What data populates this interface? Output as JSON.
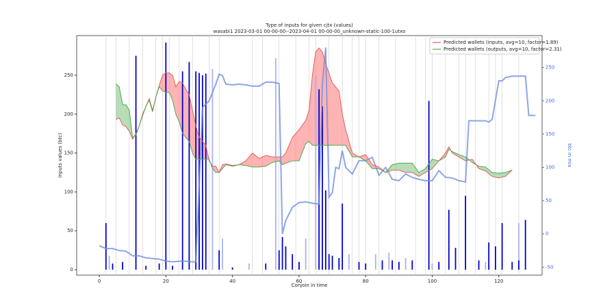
{
  "chart_data": {
    "type": "combo",
    "title": "Type of inputs for given cjtx (values)",
    "subtitle": "wasabi1 2023-03-01 00-00-00--2023-04-01 00-00-00_unknown-static-100-1utxo",
    "x_label": "Conjoin in time",
    "y_label": "Inputs values (btc)",
    "y2_label": "btc in mix",
    "xlim": [
      -6.8,
      133
    ],
    "xticks": [
      0,
      20,
      40,
      60,
      80,
      100,
      120
    ],
    "ylim": [
      -7,
      301
    ],
    "yticks": [
      0,
      50,
      100,
      150,
      200,
      250
    ],
    "y2lim": [
      -62,
      298
    ],
    "y2ticks": [
      -50,
      0,
      50,
      100,
      150,
      200,
      250
    ],
    "legend": "upper right",
    "event_x": [
      2,
      5,
      9,
      13,
      17,
      19,
      21,
      24,
      28,
      33,
      36,
      46,
      49,
      54,
      59,
      63,
      65,
      69,
      73,
      76,
      78,
      80,
      84,
      89,
      95,
      98,
      100,
      104,
      108,
      110,
      113,
      117,
      119,
      121,
      126
    ],
    "series": [
      {
        "name": "Predicted wallets (inputs, avg=10, factor=1.89)",
        "color": "#e06060",
        "fill": "#ff9a9a",
        "x": [
          5,
          6,
          7,
          8,
          9,
          10,
          11,
          12,
          13,
          14,
          15,
          16,
          17,
          18,
          19,
          20,
          21,
          22,
          23,
          24,
          25,
          26,
          27,
          28,
          29,
          30,
          32,
          33,
          34,
          35,
          36,
          37,
          38,
          40,
          42,
          44,
          46,
          48,
          50,
          52,
          54,
          55,
          56,
          58,
          60,
          62,
          63,
          64,
          65,
          66,
          67,
          68,
          70,
          72,
          73,
          74,
          76,
          78,
          80,
          82,
          84,
          86,
          88,
          90,
          92,
          94,
          96,
          98,
          100,
          102,
          104,
          105,
          106,
          108,
          110,
          112,
          114,
          116,
          118,
          120,
          122,
          124
        ],
        "values": [
          193,
          195,
          186,
          184,
          178,
          168,
          175,
          185,
          200,
          210,
          220,
          205,
          222,
          237,
          250,
          253,
          253,
          250,
          235,
          242,
          240,
          232,
          225,
          205,
          185,
          170,
          160,
          140,
          133,
          133,
          125,
          135,
          136,
          134,
          135,
          140,
          150,
          143,
          147,
          145,
          145,
          145,
          150,
          170,
          180,
          192,
          205,
          250,
          280,
          285,
          280,
          265,
          240,
          230,
          200,
          180,
          150,
          145,
          148,
          135,
          132,
          125,
          128,
          128,
          125,
          125,
          120,
          125,
          130,
          140,
          150,
          158,
          150,
          145,
          140,
          142,
          130,
          127,
          120,
          118,
          120,
          128
        ]
      },
      {
        "name": "Predicted wallets (outputs, avg=10, factor=2.31)",
        "color": "#4fa84f",
        "fill": "#9fd09f",
        "x": [
          5,
          6,
          7,
          8,
          9,
          10,
          11,
          12,
          13,
          14,
          15,
          16,
          17,
          18,
          19,
          20,
          21,
          22,
          23,
          24,
          25,
          26,
          27,
          28,
          29,
          30,
          32,
          33,
          34,
          35,
          36,
          37,
          38,
          40,
          42,
          44,
          46,
          48,
          50,
          52,
          54,
          55,
          56,
          58,
          60,
          62,
          63,
          64,
          65,
          66,
          67,
          68,
          70,
          72,
          73,
          74,
          76,
          78,
          80,
          82,
          84,
          86,
          88,
          90,
          92,
          94,
          96,
          98,
          100,
          102,
          104,
          105,
          106,
          108,
          110,
          112,
          114,
          116,
          118,
          120,
          122,
          124
        ],
        "values": [
          239,
          235,
          212,
          212,
          205,
          170,
          173,
          185,
          198,
          210,
          218,
          203,
          222,
          235,
          230,
          228,
          228,
          218,
          200,
          190,
          175,
          170,
          165,
          150,
          142,
          142,
          142,
          142,
          130,
          125,
          125,
          130,
          135,
          133,
          135,
          134,
          132,
          132,
          133,
          138,
          140,
          135,
          137,
          140,
          140,
          162,
          165,
          160,
          160,
          160,
          160,
          160,
          160,
          160,
          160,
          160,
          145,
          145,
          140,
          130,
          130,
          125,
          135,
          137,
          137,
          137,
          125,
          130,
          142,
          140,
          145,
          155,
          152,
          148,
          145,
          138,
          133,
          132,
          125,
          124,
          125,
          128
        ]
      }
    ],
    "mix_line": {
      "color": "#6f8fe0",
      "axis": "y2",
      "x": [
        0,
        2,
        4,
        6,
        8,
        10,
        12,
        14,
        16,
        18,
        20,
        22,
        24,
        26,
        28,
        29,
        31,
        33,
        35,
        36,
        37,
        38,
        40,
        42,
        44,
        46,
        48,
        50,
        52,
        54,
        55,
        56,
        58,
        60,
        62,
        64,
        66,
        67,
        68,
        69,
        70,
        71,
        72,
        73,
        74,
        76,
        78,
        80,
        82,
        84,
        86,
        88,
        90,
        92,
        94,
        96,
        98,
        100,
        102,
        104,
        106,
        108,
        110,
        111,
        112,
        114,
        116,
        117,
        118,
        120,
        121,
        122,
        124,
        126,
        128,
        129,
        131
      ],
      "values": [
        -18,
        -22,
        -22,
        -25,
        -26,
        -33,
        -33,
        -36,
        -37,
        -38,
        -41,
        -42,
        -41,
        -41,
        -42,
        -42,
        190,
        200,
        225,
        240,
        238,
        225,
        224,
        225,
        224,
        222,
        222,
        228,
        228,
        226,
        0,
        20,
        40,
        47,
        48,
        46,
        45,
        225,
        280,
        55,
        62,
        100,
        98,
        125,
        100,
        90,
        110,
        110,
        115,
        88,
        100,
        82,
        80,
        90,
        85,
        82,
        80,
        80,
        95,
        85,
        84,
        80,
        78,
        170,
        170,
        170,
        170,
        168,
        172,
        230,
        230,
        235,
        237,
        237,
        237,
        178,
        178
      ]
    },
    "bars": [
      {
        "color": "#aab2ee",
        "x": [
          3,
          34,
          37,
          45,
          53,
          62,
          65,
          75,
          83,
          87,
          92,
          100,
          116,
          126
        ],
        "values": [
          18,
          258,
          40,
          8,
          272,
          40,
          250,
          20,
          20,
          22,
          15,
          8,
          10,
          60
        ]
      },
      {
        "color": "#0000cc",
        "x": [
          2,
          4,
          7,
          11,
          14,
          18,
          20,
          22,
          25,
          27,
          29,
          30,
          31,
          32,
          36,
          40,
          50,
          54,
          55,
          56,
          58,
          60,
          66,
          67,
          68,
          69,
          70,
          72,
          73,
          78,
          80,
          85,
          88,
          90,
          94,
          99,
          102,
          105,
          107,
          110,
          114,
          117,
          119,
          121,
          124,
          126,
          128
        ],
        "values": [
          60,
          8,
          10,
          275,
          5,
          8,
          292,
          5,
          255,
          267,
          255,
          253,
          250,
          252,
          25,
          3,
          8,
          25,
          42,
          30,
          20,
          10,
          232,
          210,
          102,
          20,
          18,
          15,
          85,
          10,
          8,
          12,
          12,
          10,
          12,
          217,
          10,
          77,
          28,
          95,
          12,
          35,
          30,
          60,
          10,
          12,
          64
        ]
      }
    ]
  }
}
